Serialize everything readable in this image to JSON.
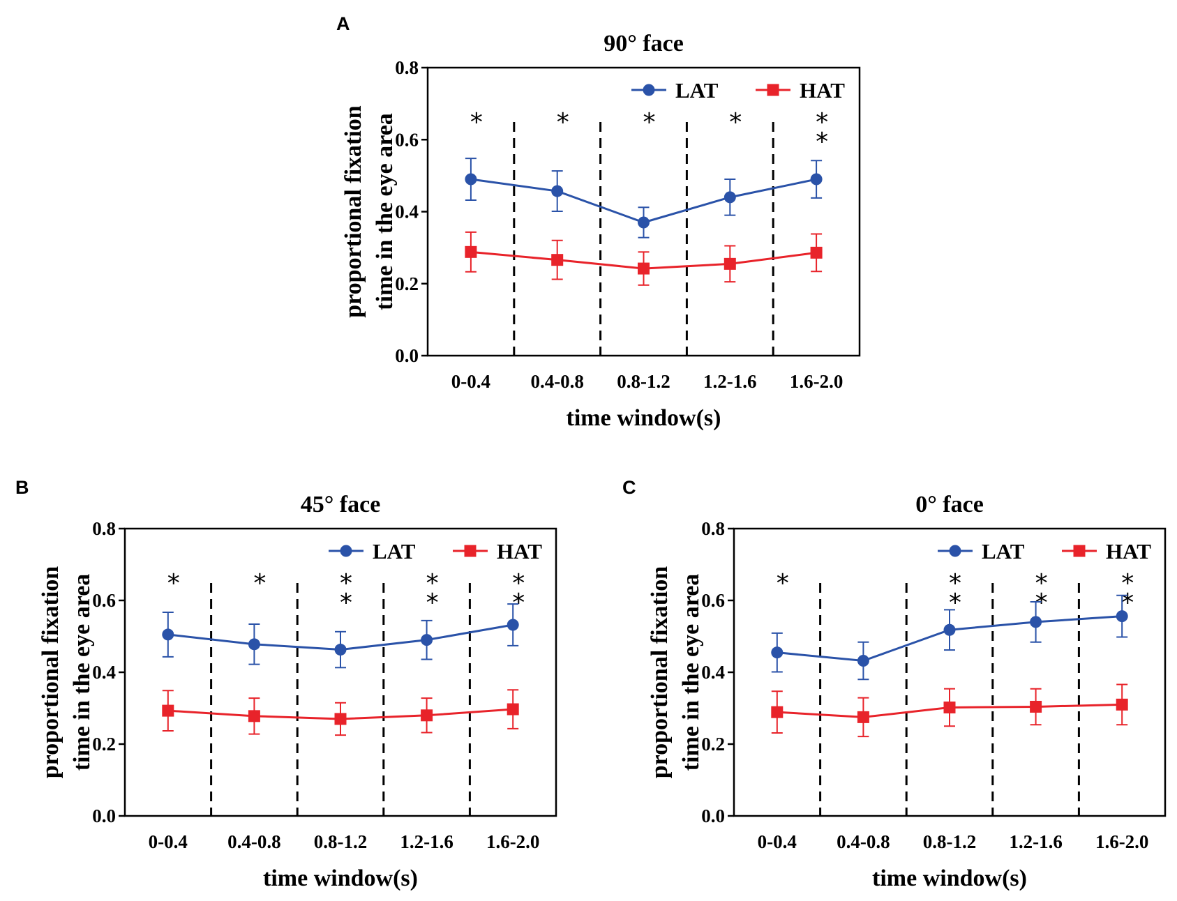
{
  "figure": {
    "series_colors": {
      "LAT": "#2a52a8",
      "HAT": "#e8232a"
    }
  },
  "chart_data": [
    {
      "panel": "A",
      "type": "line",
      "title": "90° face",
      "xlabel": "time window(s)",
      "ylabel": [
        "proportional fixation",
        "time in the eye area"
      ],
      "ylim": [
        0,
        0.8
      ],
      "yticks": [
        "0.0",
        "0.2",
        "0.4",
        "0.6",
        "0.8"
      ],
      "categories": [
        "0-0.4",
        "0.4-0.8",
        "0.8-1.2",
        "1.2-1.6",
        "1.6-2.0"
      ],
      "legend": [
        "LAT",
        "HAT"
      ],
      "legend_position": "top-right",
      "series": [
        {
          "name": "LAT",
          "marker": "circle",
          "values": [
            0.49,
            0.457,
            0.37,
            0.44,
            0.49
          ],
          "errors": [
            0.058,
            0.056,
            0.042,
            0.05,
            0.052
          ]
        },
        {
          "name": "HAT",
          "marker": "square",
          "values": [
            0.288,
            0.266,
            0.242,
            0.255,
            0.286
          ],
          "errors": [
            0.055,
            0.054,
            0.046,
            0.05,
            0.052
          ]
        }
      ],
      "significance": [
        "*",
        "*",
        "*",
        "*",
        "**"
      ]
    },
    {
      "panel": "B",
      "type": "line",
      "title": "45° face",
      "xlabel": "time window(s)",
      "ylabel": [
        "proportional fixation",
        "time in the eye area"
      ],
      "ylim": [
        0,
        0.8
      ],
      "yticks": [
        "0.0",
        "0.2",
        "0.4",
        "0.6",
        "0.8"
      ],
      "categories": [
        "0-0.4",
        "0.4-0.8",
        "0.8-1.2",
        "1.2-1.6",
        "1.6-2.0"
      ],
      "legend": [
        "LAT",
        "HAT"
      ],
      "legend_position": "top-right",
      "series": [
        {
          "name": "LAT",
          "marker": "circle",
          "values": [
            0.505,
            0.478,
            0.463,
            0.49,
            0.532
          ],
          "errors": [
            0.062,
            0.056,
            0.05,
            0.054,
            0.058
          ]
        },
        {
          "name": "HAT",
          "marker": "square",
          "values": [
            0.293,
            0.278,
            0.27,
            0.28,
            0.297
          ],
          "errors": [
            0.056,
            0.05,
            0.045,
            0.048,
            0.054
          ]
        }
      ],
      "significance": [
        "*",
        "*",
        "**",
        "**",
        "**"
      ]
    },
    {
      "panel": "C",
      "type": "line",
      "title": "0° face",
      "xlabel": "time window(s)",
      "ylabel": [
        "proportional fixation",
        "time in the eye area"
      ],
      "ylim": [
        0,
        0.8
      ],
      "yticks": [
        "0.0",
        "0.2",
        "0.4",
        "0.6",
        "0.8"
      ],
      "categories": [
        "0-0.4",
        "0.4-0.8",
        "0.8-1.2",
        "1.2-1.6",
        "1.6-2.0"
      ],
      "legend": [
        "LAT",
        "HAT"
      ],
      "legend_position": "top-right",
      "series": [
        {
          "name": "LAT",
          "marker": "circle",
          "values": [
            0.455,
            0.432,
            0.518,
            0.54,
            0.556
          ],
          "errors": [
            0.054,
            0.052,
            0.056,
            0.056,
            0.058
          ]
        },
        {
          "name": "HAT",
          "marker": "square",
          "values": [
            0.289,
            0.275,
            0.302,
            0.304,
            0.31
          ],
          "errors": [
            0.058,
            0.054,
            0.052,
            0.05,
            0.056
          ]
        }
      ],
      "significance": [
        "*",
        "",
        "**",
        "**",
        "**"
      ]
    }
  ]
}
